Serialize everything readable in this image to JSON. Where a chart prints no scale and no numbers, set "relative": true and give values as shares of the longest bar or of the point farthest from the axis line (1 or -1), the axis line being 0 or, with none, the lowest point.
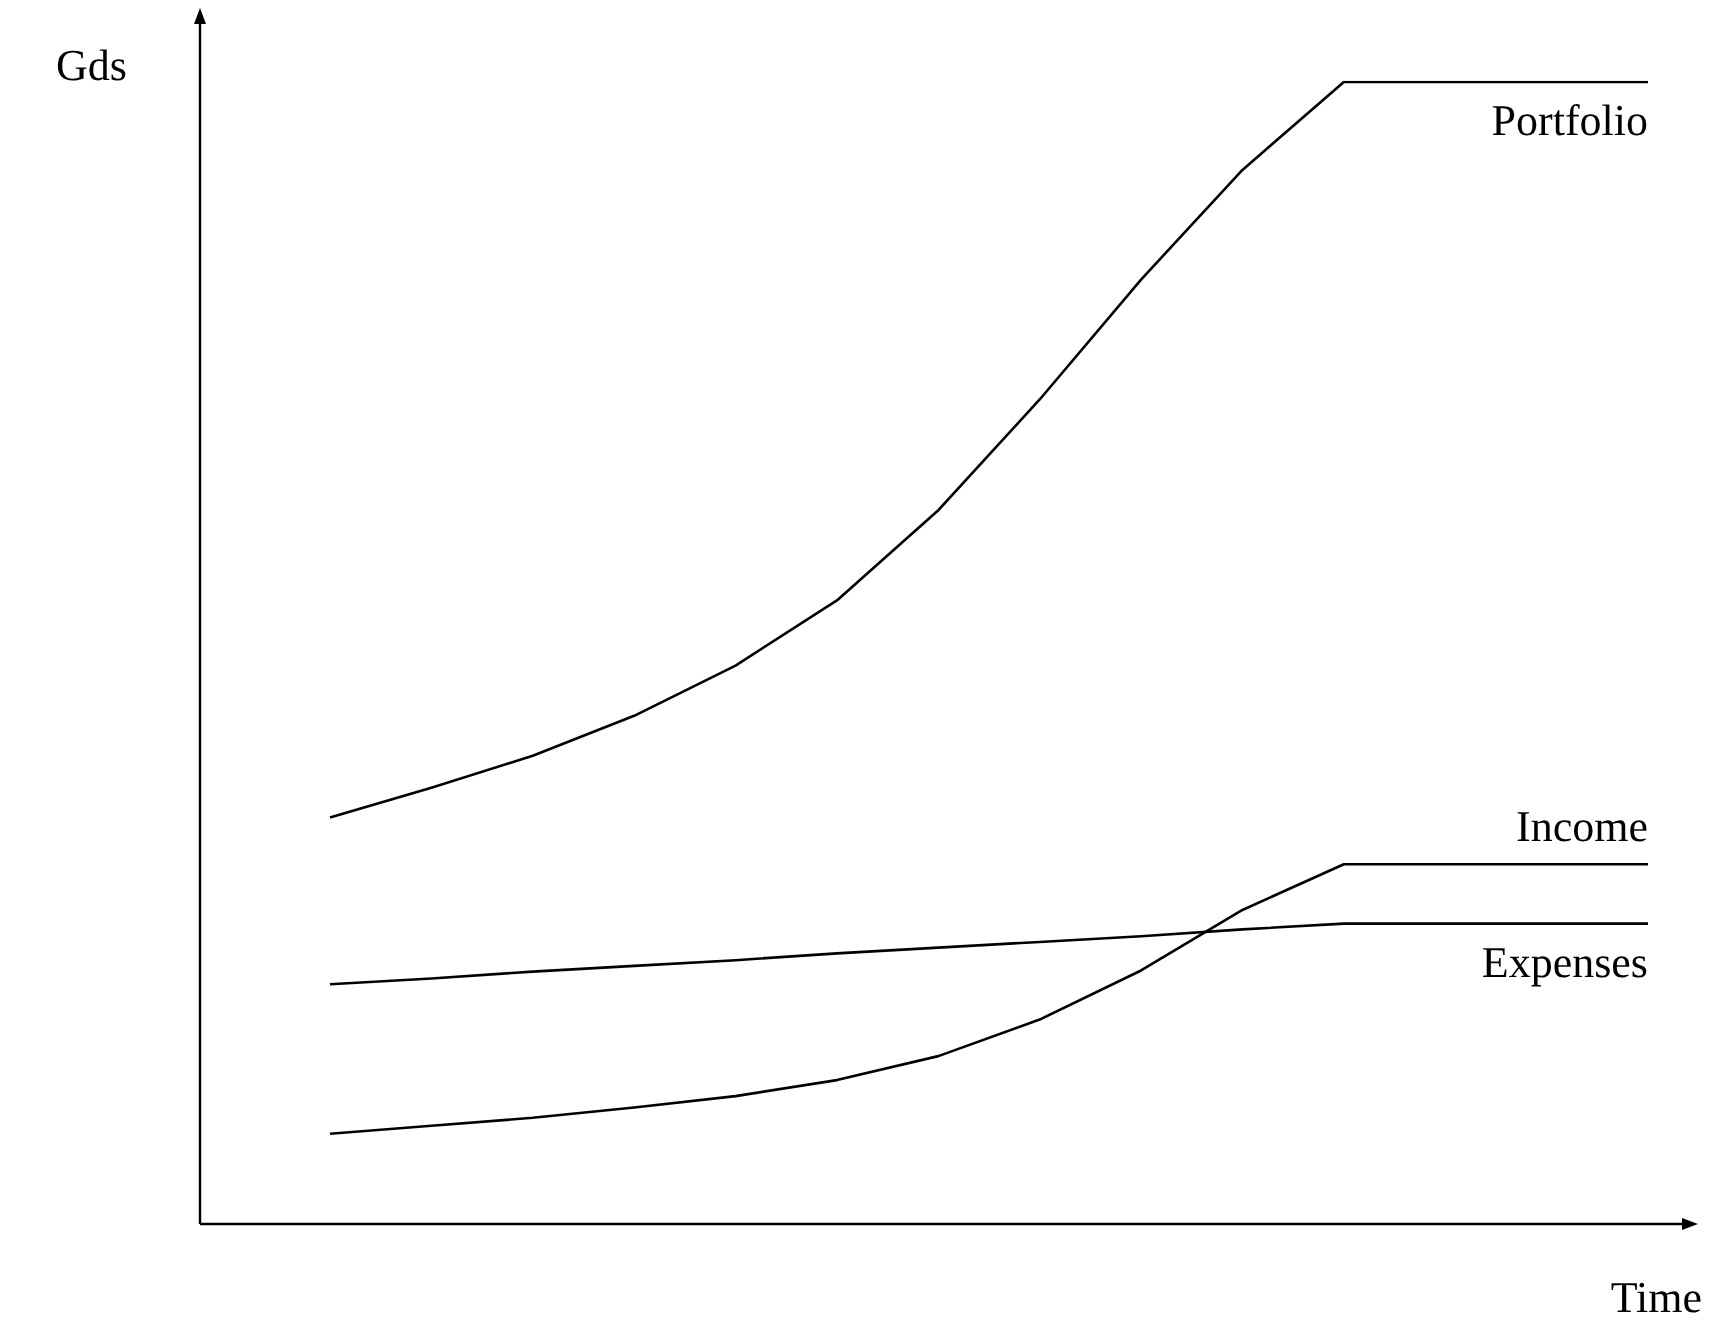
{
  "chart_data": {
    "type": "line",
    "relative": true,
    "xlabel": "Time",
    "ylabel": "Gds",
    "categories": [
      null,
      null,
      null,
      null,
      null,
      null,
      null,
      null,
      null,
      null,
      null,
      null,
      null,
      null
    ],
    "marker": "none",
    "line_style": "solid",
    "grid": false,
    "legend": false,
    "series": [
      {
        "name": "Portfolio",
        "color": "#000000",
        "values": [
          0.356,
          0.382,
          0.41,
          0.445,
          0.489,
          0.546,
          0.625,
          0.722,
          0.827,
          0.923,
          1,
          1,
          1,
          1
        ]
      },
      {
        "name": "Income",
        "color": "#000000",
        "values": [
          0.079,
          0.086,
          0.093,
          0.102,
          0.112,
          0.126,
          0.147,
          0.179,
          0.222,
          0.275,
          0.315,
          0.315,
          0.315,
          0.315
        ]
      },
      {
        "name": "Expenses",
        "color": "#000000",
        "values": [
          0.21,
          0.215,
          0.221,
          0.226,
          0.231,
          0.237,
          0.242,
          0.247,
          0.252,
          0.258,
          0.263,
          0.263,
          0.263,
          0.263
        ]
      }
    ]
  }
}
